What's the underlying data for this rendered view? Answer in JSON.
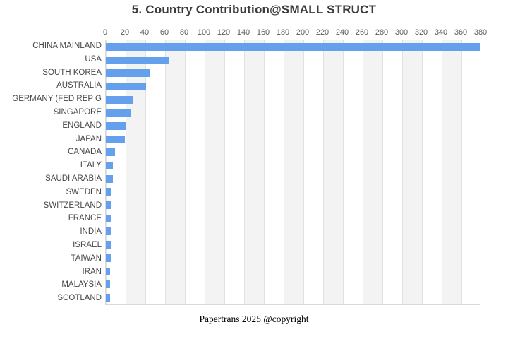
{
  "header": {
    "title": "5. Country Contribution@SMALL STRUCT"
  },
  "footer": {
    "text": "Papertrans 2025 @copyright"
  },
  "chart_data": {
    "type": "bar",
    "orientation": "horizontal",
    "title": "5. Country Contribution@SMALL STRUCT",
    "categories": [
      "CHINA MAINLAND",
      "USA",
      "SOUTH KOREA",
      "AUSTRALIA",
      "GERMANY (FED REP G",
      "SINGAPORE",
      "ENGLAND",
      "JAPAN",
      "CANADA",
      "ITALY",
      "SAUDI ARABIA",
      "SWEDEN",
      "SWITZERLAND",
      "FRANCE",
      "INDIA",
      "ISRAEL",
      "TAIWAN",
      "IRAN",
      "MALAYSIA",
      "SCOTLAND"
    ],
    "values": [
      380,
      64,
      45,
      41,
      28,
      25,
      21,
      19,
      9,
      7,
      7,
      6,
      6,
      5,
      5,
      5,
      5,
      4,
      4,
      4
    ],
    "xlabel": "",
    "ylabel": "",
    "xlim": [
      0,
      380
    ],
    "xtick_step": 20,
    "xticks_position": "top",
    "grid": "alternating vertical bands every 20 units",
    "legend": null
  },
  "style": {
    "bar_color": "#64a0ec",
    "band_color": "#f3f3f3",
    "gridline_color": "#e2e2e2",
    "border_color": "#d9d9d9",
    "title_color": "#3b3b3b",
    "tick_color": "#595959",
    "label_color": "#474747",
    "footer_color": "#000000"
  }
}
